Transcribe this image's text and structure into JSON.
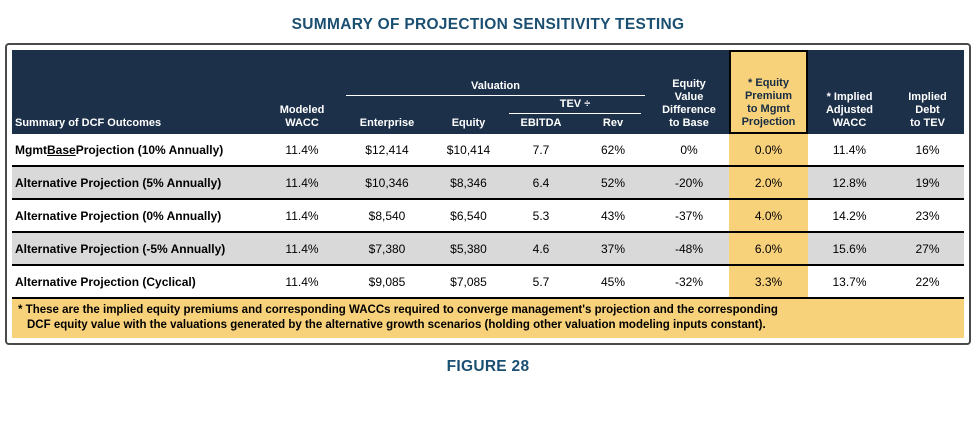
{
  "title": "SUMMARY OF PROJECTION SENSITIVITY TESTING",
  "figure_caption": "FIGURE 28",
  "colors": {
    "header_bg": "#1C3049",
    "highlight_yellow": "#F8D17B",
    "stripe_gray": "#D9D9D9",
    "accent_blue": "#1B4F72"
  },
  "header": {
    "row_label": "Summary of DCF Outcomes",
    "modeled_wacc": "Modeled\nWACC",
    "valuation_group": "Valuation",
    "tev_group": "TEV ÷",
    "enterprise": "Enterprise",
    "equity": "Equity",
    "ebitda": "EBITDA",
    "rev": "Rev",
    "equity_value_difference": "Equity\nValue\nDifference\nto Base",
    "equity_premium": "* Equity\nPremium\nto Mgmt\nProjection",
    "implied_adjusted_wacc": "* Implied\nAdjusted\nWACC",
    "implied_debt": "Implied\nDebt\nto TEV"
  },
  "rows": [
    {
      "label_pre": "Mgmt ",
      "label_u": "Base",
      "label_post": " Projection (10% Annually)",
      "modeled_wacc": "11.4%",
      "enterprise": "$12,414",
      "equity": "$10,414",
      "tev_ebitda": "7.7",
      "tev_rev": "62%",
      "ev_diff": "0%",
      "premium": "0.0%",
      "adj_wacc": "11.4%",
      "debt_tev": "16%"
    },
    {
      "label_pre": "Alternative Projection (5% Annually)",
      "label_u": "",
      "label_post": "",
      "modeled_wacc": "11.4%",
      "enterprise": "$10,346",
      "equity": "$8,346",
      "tev_ebitda": "6.4",
      "tev_rev": "52%",
      "ev_diff": "-20%",
      "premium": "2.0%",
      "adj_wacc": "12.8%",
      "debt_tev": "19%"
    },
    {
      "label_pre": "Alternative Projection (0% Annually)",
      "label_u": "",
      "label_post": "",
      "modeled_wacc": "11.4%",
      "enterprise": "$8,540",
      "equity": "$6,540",
      "tev_ebitda": "5.3",
      "tev_rev": "43%",
      "ev_diff": "-37%",
      "premium": "4.0%",
      "adj_wacc": "14.2%",
      "debt_tev": "23%"
    },
    {
      "label_pre": "Alternative Projection (-5% Annually)",
      "label_u": "",
      "label_post": "",
      "modeled_wacc": "11.4%",
      "enterprise": "$7,380",
      "equity": "$5,380",
      "tev_ebitda": "4.6",
      "tev_rev": "37%",
      "ev_diff": "-48%",
      "premium": "6.0%",
      "adj_wacc": "15.6%",
      "debt_tev": "27%"
    },
    {
      "label_pre": "Alternative Projection (Cyclical)",
      "label_u": "",
      "label_post": "",
      "modeled_wacc": "11.4%",
      "enterprise": "$9,085",
      "equity": "$7,085",
      "tev_ebitda": "5.7",
      "tev_rev": "45%",
      "ev_diff": "-32%",
      "premium": "3.3%",
      "adj_wacc": "13.7%",
      "debt_tev": "22%"
    }
  ],
  "footnote": {
    "line1": "* These are the implied equity premiums and corresponding WACCs required to converge management's projection and the corresponding",
    "line2": "DCF equity value with the valuations generated by the alternative growth scenarios (holding other valuation modeling inputs constant)."
  }
}
